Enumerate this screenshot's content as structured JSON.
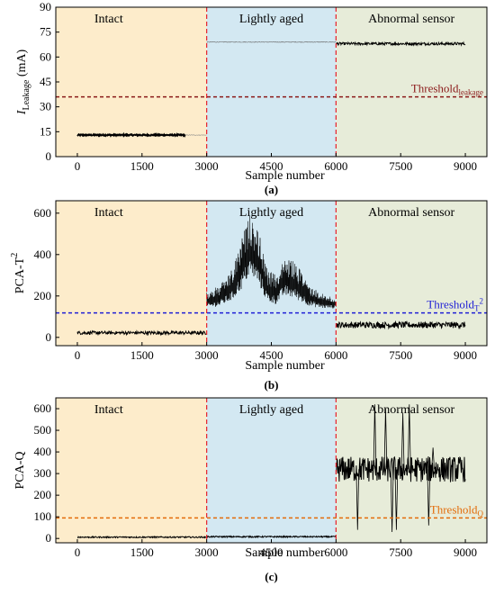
{
  "chart_data": [
    {
      "type": "line",
      "panel_label": "(a)",
      "ylabel": "I",
      "ylabel_sub": "Leakage",
      "ylabel_unit": " (mA)",
      "xlabel": "Sample number",
      "xlim": [
        -500,
        9500
      ],
      "ylim": [
        0,
        90
      ],
      "xticks": [
        0,
        1500,
        3000,
        4500,
        6000,
        7500,
        9000
      ],
      "yticks": [
        0,
        15,
        30,
        45,
        60,
        75,
        90
      ],
      "regions": [
        {
          "label": "Intact",
          "x0": -500,
          "x1": 3000,
          "color": "#fdeccb"
        },
        {
          "label": "Lightly aged",
          "x0": 3000,
          "x1": 6000,
          "color": "#d3e8f2"
        },
        {
          "label": "Abnormal sensor",
          "x0": 6000,
          "x1": 9500,
          "color": "#e7ecd9"
        }
      ],
      "boundaries": [
        3000,
        6000
      ],
      "threshold": {
        "value": 36,
        "label": "Threshold",
        "sub": "leakage",
        "sup": "",
        "color": "#8b1a1a"
      },
      "segments": [
        {
          "x0": 0,
          "x1": 2500,
          "level": 13,
          "noise": 0.4,
          "thickness": 2,
          "color": "#000000"
        },
        {
          "x0": 2500,
          "x1": 3000,
          "level": 13,
          "noise": 0.2,
          "thickness": 0.6,
          "color": "#888888"
        },
        {
          "x0": 3000,
          "x1": 6000,
          "level": 69,
          "noise": 0.2,
          "thickness": 0.6,
          "color": "#666666"
        },
        {
          "x0": 6000,
          "x1": 9000,
          "level": 68,
          "noise": 0.8,
          "thickness": 1,
          "color": "#000000"
        }
      ]
    },
    {
      "type": "line",
      "panel_label": "(b)",
      "ylabel": "PCA-T",
      "ylabel_sub": "",
      "ylabel_sup": "2",
      "xlabel": "Sample number",
      "xlim": [
        -500,
        9500
      ],
      "ylim": [
        -40,
        660
      ],
      "xticks": [
        0,
        1500,
        3000,
        4500,
        6000,
        7500,
        9000
      ],
      "yticks": [
        0,
        200,
        400,
        600
      ],
      "regions": [
        {
          "label": "Intact",
          "x0": -500,
          "x1": 3000,
          "color": "#fdeccb"
        },
        {
          "label": "Lightly aged",
          "x0": 3000,
          "x1": 6000,
          "color": "#d3e8f2"
        },
        {
          "label": "Abnormal sensor",
          "x0": 6000,
          "x1": 9500,
          "color": "#e7ecd9"
        }
      ],
      "boundaries": [
        3000,
        6000
      ],
      "threshold": {
        "value": 118,
        "label": "Threshold",
        "sub": "T",
        "sup": "2",
        "color": "#1f1fd6"
      },
      "segments": [
        {
          "x0": 0,
          "x1": 3000,
          "level": 22,
          "noise": 8,
          "thickness": 1,
          "color": "#000000"
        },
        {
          "x0": 6000,
          "x1": 9000,
          "level": 60,
          "noise": 15,
          "thickness": 1,
          "color": "#000000"
        }
      ],
      "envelope": {
        "x": [
          3000,
          3300,
          3600,
          3800,
          4000,
          4200,
          4400,
          4600,
          4800,
          5000,
          5200,
          5400,
          5700,
          6000
        ],
        "upper": [
          220,
          250,
          330,
          470,
          590,
          520,
          330,
          300,
          380,
          370,
          320,
          250,
          210,
          190
        ],
        "lower": [
          140,
          150,
          180,
          230,
          300,
          260,
          170,
          160,
          200,
          190,
          170,
          150,
          140,
          140
        ]
      }
    },
    {
      "type": "line",
      "panel_label": "(c)",
      "ylabel": "PCA-Q",
      "ylabel_sub": "",
      "xlabel": "Sample number",
      "xlim": [
        -500,
        9500
      ],
      "ylim": [
        -20,
        650
      ],
      "xticks": [
        0,
        1500,
        3000,
        4500,
        6000,
        7500,
        9000
      ],
      "yticks": [
        0,
        100,
        200,
        300,
        400,
        500,
        600
      ],
      "regions": [
        {
          "label": "Intact",
          "x0": -500,
          "x1": 3000,
          "color": "#fdeccb"
        },
        {
          "label": "Lightly aged",
          "x0": 3000,
          "x1": 6000,
          "color": "#d3e8f2"
        },
        {
          "label": "Abnormal sensor",
          "x0": 6000,
          "x1": 9500,
          "color": "#e7ecd9"
        }
      ],
      "boundaries": [
        3000,
        6000
      ],
      "threshold": {
        "value": 95,
        "label": "Threshold",
        "sub": "Q",
        "sup": "",
        "color": "#e36c0a"
      },
      "segments": [
        {
          "x0": 0,
          "x1": 3000,
          "level": 6,
          "noise": 3,
          "thickness": 1,
          "color": "#000000"
        },
        {
          "x0": 3000,
          "x1": 6000,
          "level": 8,
          "noise": 3,
          "thickness": 1,
          "color": "#000000"
        },
        {
          "x0": 6000,
          "x1": 9000,
          "level": 320,
          "noise": 60,
          "thickness": 1,
          "color": "#000000"
        }
      ],
      "spikes": [
        {
          "x": 6500,
          "y": 40
        },
        {
          "x": 6900,
          "y": 620
        },
        {
          "x": 7150,
          "y": 600
        },
        {
          "x": 7300,
          "y": 30
        },
        {
          "x": 7400,
          "y": 40
        },
        {
          "x": 7550,
          "y": 580
        },
        {
          "x": 7700,
          "y": 620
        },
        {
          "x": 8150,
          "y": 60
        },
        {
          "x": 8250,
          "y": 420
        }
      ]
    }
  ]
}
